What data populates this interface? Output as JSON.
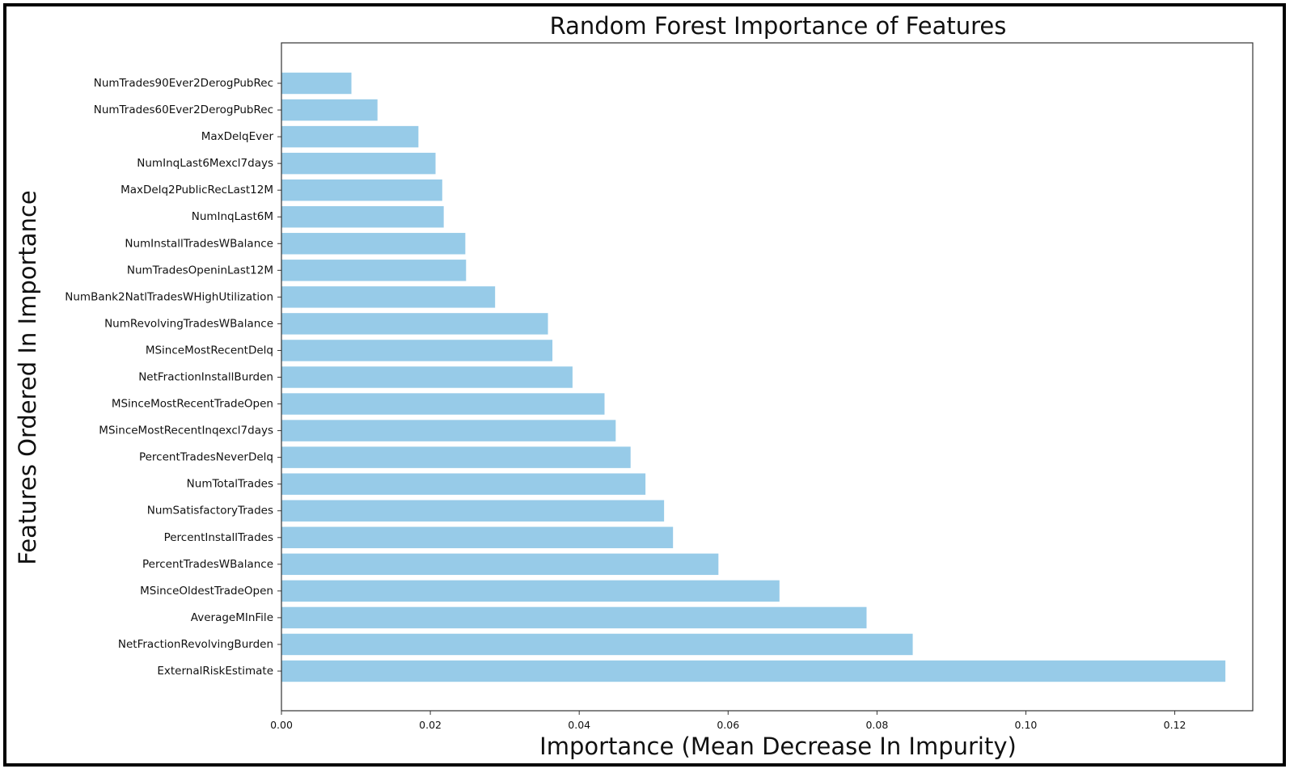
{
  "chart_data": {
    "type": "bar",
    "orientation": "horizontal",
    "title": "Random Forest Importance of Features",
    "xlabel": "Importance (Mean Decrease In Impurity)",
    "ylabel": "Features Ordered In Importance",
    "xlim": [
      0,
      0.13
    ],
    "xticks": [
      0.0,
      0.02,
      0.04,
      0.06,
      0.08,
      0.1,
      0.12
    ],
    "xtick_labels": [
      "0.00",
      "0.02",
      "0.04",
      "0.06",
      "0.08",
      "0.10",
      "0.12"
    ],
    "bar_color": "#97cbe8",
    "grid": false,
    "categories": [
      "NumTrades90Ever2DerogPubRec",
      "NumTrades60Ever2DerogPubRec",
      "MaxDelqEver",
      "NumInqLast6Mexcl7days",
      "MaxDelq2PublicRecLast12M",
      "NumInqLast6M",
      "NumInstallTradesWBalance",
      "NumTradesOpeninLast12M",
      "NumBank2NatlTradesWHighUtilization",
      "NumRevolvingTradesWBalance",
      "MSinceMostRecentDelq",
      "NetFractionInstallBurden",
      "MSinceMostRecentTradeOpen",
      "MSinceMostRecentInqexcl7days",
      "PercentTradesNeverDelq",
      "NumTotalTrades",
      "NumSatisfactoryTrades",
      "PercentInstallTrades",
      "PercentTradesWBalance",
      "MSinceOldestTradeOpen",
      "AverageMInFile",
      "NetFractionRevolvingBurden",
      "ExternalRiskEstimate"
    ],
    "values": [
      0.0094,
      0.0129,
      0.0184,
      0.0207,
      0.0216,
      0.0218,
      0.0247,
      0.0248,
      0.0287,
      0.0358,
      0.0364,
      0.0391,
      0.0434,
      0.0449,
      0.0469,
      0.0489,
      0.0514,
      0.0526,
      0.0587,
      0.0669,
      0.0786,
      0.0848,
      0.1268
    ]
  }
}
